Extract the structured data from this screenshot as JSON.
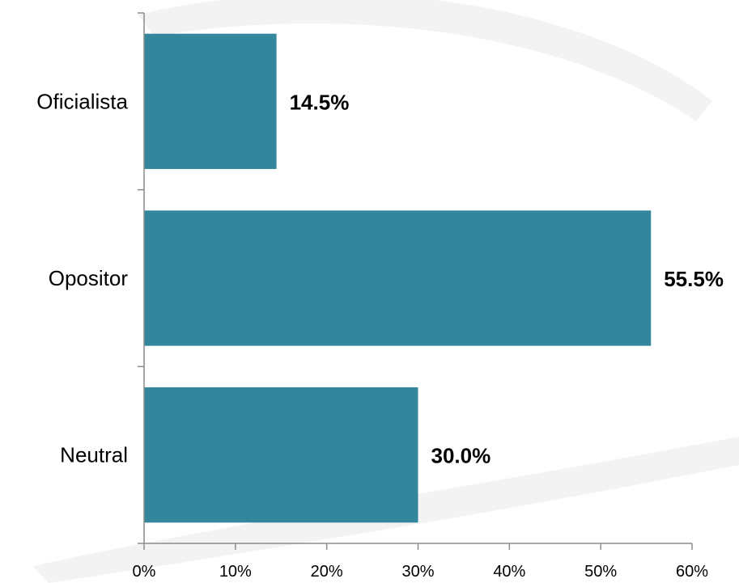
{
  "chart_data": {
    "type": "bar",
    "orientation": "horizontal",
    "categories": [
      "Oficialista",
      "Opositor",
      "Neutral"
    ],
    "values": [
      14.5,
      55.5,
      30.0
    ],
    "data_labels": [
      "14.5%",
      "55.5%",
      "30.0%"
    ],
    "xlim": [
      0,
      60
    ],
    "x_ticks": [
      0,
      10,
      20,
      30,
      40,
      50,
      60
    ],
    "x_tick_labels": [
      "0%",
      "10%",
      "20%",
      "30%",
      "40%",
      "50%",
      "60%"
    ],
    "grid": false,
    "legend": "none",
    "colors": {
      "bar": "#33879C",
      "axis": "#8C8C8C",
      "watermark": "#F3F3F3"
    }
  }
}
